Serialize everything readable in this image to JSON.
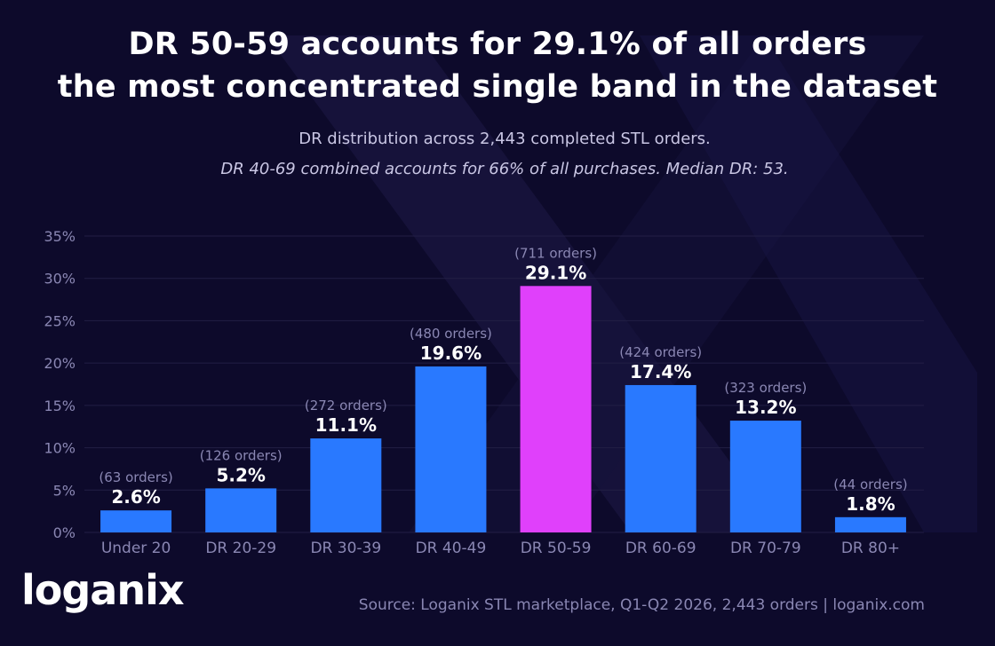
{
  "title_line1": "DR 50-59 accounts for 29.1% of all orders",
  "title_line2": "the most concentrated single band in the dataset",
  "subtitle_line1": "DR distribution across 2,443 completed STL orders.",
  "subtitle_line2": "DR 40-69 combined accounts for 66% of all purchases. Median DR: 53.",
  "source": "Source: Loganix STL marketplace, Q1-Q2 2026, 2,443 orders  |  loganix.com",
  "logo": {
    "main": "logani",
    "accent": "x"
  },
  "colors": {
    "background": "#0d0a2b",
    "bar": "#2979ff",
    "highlight": "#e040fb",
    "grid": "#221f45",
    "axis_text": "#8a87b3",
    "value_text": "#ffffff",
    "count_text": "#8a87b3"
  },
  "chart_data": {
    "type": "bar",
    "title": "DR 50-59 accounts for 29.1% of all orders the most concentrated single band in the dataset",
    "categories": [
      "Under 20",
      "DR 20-29",
      "DR 30-39",
      "DR 40-49",
      "DR 50-59",
      "DR 60-69",
      "DR 70-79",
      "DR 80+"
    ],
    "values": [
      2.6,
      5.2,
      11.1,
      19.6,
      29.1,
      17.4,
      13.2,
      1.8
    ],
    "value_labels": [
      "2.6%",
      "5.2%",
      "11.1%",
      "19.6%",
      "29.1%",
      "17.4%",
      "13.2%",
      "1.8%"
    ],
    "count_labels": [
      "(63 orders)",
      "(126 orders)",
      "(272 orders)",
      "(480 orders)",
      "(711 orders)",
      "(424 orders)",
      "(323 orders)",
      "(44 orders)"
    ],
    "highlight_index": 4,
    "ylim": [
      0,
      35
    ],
    "yticks": [
      0,
      5,
      10,
      15,
      20,
      25,
      30,
      35
    ],
    "ytick_labels": [
      "0%",
      "5%",
      "10%",
      "15%",
      "20%",
      "25%",
      "30%",
      "35%"
    ],
    "xlabel": "",
    "ylabel": "",
    "grid": true,
    "legend": "none"
  }
}
